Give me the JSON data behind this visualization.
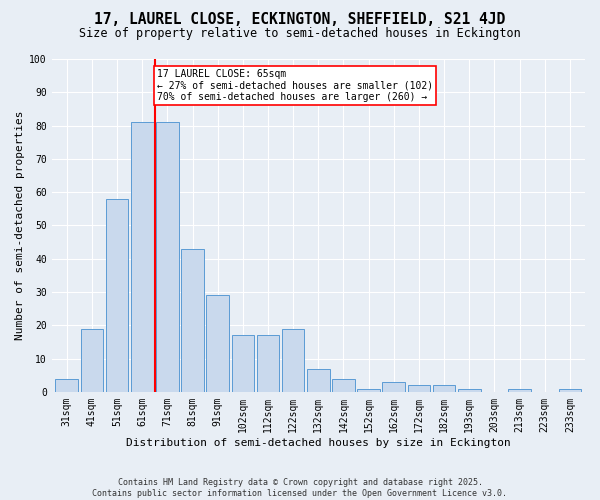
{
  "title": "17, LAUREL CLOSE, ECKINGTON, SHEFFIELD, S21 4JD",
  "subtitle": "Size of property relative to semi-detached houses in Eckington",
  "xlabel": "Distribution of semi-detached houses by size in Eckington",
  "ylabel": "Number of semi-detached properties",
  "categories": [
    "31sqm",
    "41sqm",
    "51sqm",
    "61sqm",
    "71sqm",
    "81sqm",
    "91sqm",
    "102sqm",
    "112sqm",
    "122sqm",
    "132sqm",
    "142sqm",
    "152sqm",
    "162sqm",
    "172sqm",
    "182sqm",
    "193sqm",
    "203sqm",
    "213sqm",
    "223sqm",
    "233sqm"
  ],
  "values": [
    4,
    19,
    58,
    81,
    81,
    43,
    29,
    17,
    17,
    19,
    7,
    4,
    1,
    3,
    2,
    2,
    1,
    0,
    1,
    0,
    1
  ],
  "bar_color": "#c9d9ed",
  "bar_edge_color": "#5b9bd5",
  "red_line_x": 3.5,
  "annotation_title": "17 LAUREL CLOSE: 65sqm",
  "annotation_line1": "← 27% of semi-detached houses are smaller (102)",
  "annotation_line2": "70% of semi-detached houses are larger (260) →",
  "ylim": [
    0,
    100
  ],
  "yticks": [
    0,
    10,
    20,
    30,
    40,
    50,
    60,
    70,
    80,
    90,
    100
  ],
  "footer1": "Contains HM Land Registry data © Crown copyright and database right 2025.",
  "footer2": "Contains public sector information licensed under the Open Government Licence v3.0.",
  "bg_color": "#e8eef5",
  "plot_bg_color": "#e8eef5",
  "grid_color": "#ffffff",
  "title_fontsize": 10.5,
  "subtitle_fontsize": 8.5,
  "axis_label_fontsize": 8,
  "tick_fontsize": 7,
  "annotation_fontsize": 7,
  "footer_fontsize": 6
}
